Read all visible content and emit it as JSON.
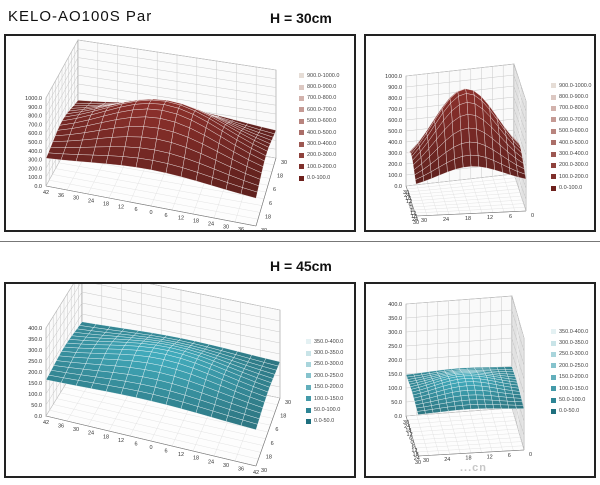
{
  "header": {
    "product": "KELO-AO100S Par"
  },
  "sections": [
    {
      "label": "H = 30cm"
    },
    {
      "label": "H =  45cm"
    }
  ],
  "watermark": "...cn",
  "chart_data": [
    {
      "type": "surface",
      "view": "wide",
      "zticks": [
        "0.0",
        "100.0",
        "200.0",
        "300.0",
        "400.0",
        "500.0",
        "600.0",
        "700.0",
        "800.0",
        "900.0",
        "1000.0"
      ],
      "xticks": [
        "42",
        "36",
        "30",
        "24",
        "18",
        "12",
        "6",
        "0",
        "6",
        "12",
        "18",
        "24",
        "30",
        "36",
        "42"
      ],
      "yticks": [
        "30",
        "18",
        "6",
        "6",
        "18",
        "30"
      ],
      "legend": [
        "900.0-1000.0",
        "800.0-900.0",
        "700.0-800.0",
        "600.0-700.0",
        "500.0-600.0",
        "400.0-500.0",
        "300.0-400.0",
        "200.0-300.0",
        "100.0-200.0",
        "0.0-100.0"
      ],
      "legend_colors": [
        "#e6ddd6",
        "#dcc8c2",
        "#d2b2ac",
        "#c59a94",
        "#b8847e",
        "#ab6e68",
        "#9d5852",
        "#8f423c",
        "#7f302b",
        "#6d201c"
      ],
      "surface_color": "#7a2a26",
      "peak": 70,
      "edge": 25
    },
    {
      "type": "surface",
      "view": "narrow",
      "zticks": [
        "0.0",
        "100.0",
        "200.0",
        "300.0",
        "400.0",
        "500.0",
        "600.0",
        "700.0",
        "800.0",
        "900.0",
        "1000.0"
      ],
      "xticks": [
        "30",
        "24",
        "18",
        "12",
        "6",
        "0",
        "6",
        "12",
        "18",
        "24",
        "30"
      ],
      "yticks": [
        "30",
        "24",
        "18",
        "12",
        "6",
        "0"
      ],
      "legend": [
        "900.0-1000.0",
        "800.0-900.0",
        "700.0-800.0",
        "600.0-700.0",
        "500.0-600.0",
        "400.0-500.0",
        "300.0-400.0",
        "200.0-300.0",
        "100.0-200.0",
        "0.0-100.0"
      ],
      "legend_colors": [
        "#e6ddd6",
        "#dcc8c2",
        "#d2b2ac",
        "#c59a94",
        "#b8847e",
        "#ab6e68",
        "#9d5852",
        "#8f423c",
        "#7f302b",
        "#6d201c"
      ],
      "surface_color": "#7a2a26",
      "peak": 120,
      "edge": 30
    },
    {
      "type": "surface",
      "view": "wide",
      "zticks": [
        "0.0",
        "50.0",
        "100.0",
        "150.0",
        "200.0",
        "250.0",
        "300.0",
        "350.0",
        "400.0"
      ],
      "xticks": [
        "42",
        "36",
        "30",
        "24",
        "18",
        "12",
        "6",
        "0",
        "6",
        "12",
        "18",
        "24",
        "30",
        "36",
        "42"
      ],
      "yticks": [
        "30",
        "18",
        "6",
        "6",
        "18",
        "30"
      ],
      "legend": [
        "350.0-400.0",
        "300.0-350.0",
        "250.0-300.0",
        "200.0-250.0",
        "150.0-200.0",
        "100.0-150.0",
        "50.0-100.0",
        "0.0-50.0"
      ],
      "legend_colors": [
        "#e4f1f3",
        "#c9e4e8",
        "#a9d5dc",
        "#86c3cd",
        "#63afbc",
        "#449aa9",
        "#2d8595",
        "#1e6f7e"
      ],
      "surface_color": "#3a97a6",
      "peak": 55,
      "edge": 35
    },
    {
      "type": "surface",
      "view": "narrow",
      "zticks": [
        "0.0",
        "50.0",
        "100.0",
        "150.0",
        "200.0",
        "250.0",
        "300.0",
        "350.0",
        "400.0"
      ],
      "xticks": [
        "30",
        "24",
        "18",
        "12",
        "6",
        "0",
        "6",
        "12",
        "18",
        "24",
        "30"
      ],
      "yticks": [
        "30",
        "24",
        "18",
        "12",
        "6",
        "0"
      ],
      "legend": [
        "350.0-400.0",
        "300.0-350.0",
        "250.0-300.0",
        "200.0-250.0",
        "150.0-200.0",
        "100.0-150.0",
        "50.0-100.0",
        "0.0-50.0"
      ],
      "legend_colors": [
        "#e4f1f3",
        "#c9e4e8",
        "#a9d5dc",
        "#86c3cd",
        "#63afbc",
        "#449aa9",
        "#2d8595",
        "#1e6f7e"
      ],
      "surface_color": "#3a97a6",
      "peak": 60,
      "edge": 45
    }
  ]
}
